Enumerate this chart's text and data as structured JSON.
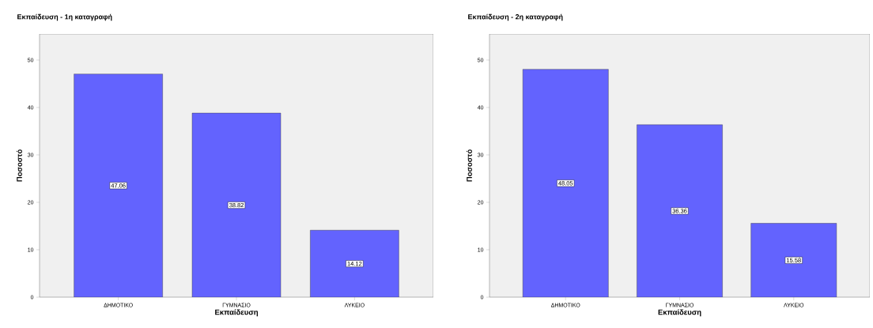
{
  "chart_data": [
    {
      "type": "bar",
      "title": "Εκπαίδευση - 1η καταγραφή",
      "xlabel": "Εκπαίδευση",
      "ylabel": "Ποσοστό",
      "categories": [
        "ΔΗΜΟΤΙΚΟ",
        "ΓΥΜΝΑΣΙΟ",
        "ΛΥΚΕΙΟ"
      ],
      "values": [
        47.06,
        38.82,
        14.12
      ],
      "color": "#6363fe",
      "value_labels": [
        "47.06",
        "38.82",
        "14.12"
      ],
      "ylim": [
        0,
        55.5
      ],
      "yticks": [
        0,
        10,
        20,
        30,
        40,
        50
      ],
      "grid": false
    },
    {
      "type": "bar",
      "title": "Εκπαίδευση - 2η καταγραφή",
      "xlabel": "Εκπαίδευση",
      "ylabel": "Ποσοστό",
      "categories": [
        "ΔΗΜΟΤΙΚΟ",
        "ΓΥΜΝΑΣΙΟ",
        "ΛΥΚΕΙΟ"
      ],
      "values": [
        48.05,
        36.36,
        15.58
      ],
      "color": "#6363fe",
      "value_labels": [
        "48.05",
        "36.36",
        "15.58"
      ],
      "ylim": [
        0,
        55.5
      ],
      "yticks": [
        0,
        10,
        20,
        30,
        40,
        50
      ],
      "grid": false
    }
  ]
}
